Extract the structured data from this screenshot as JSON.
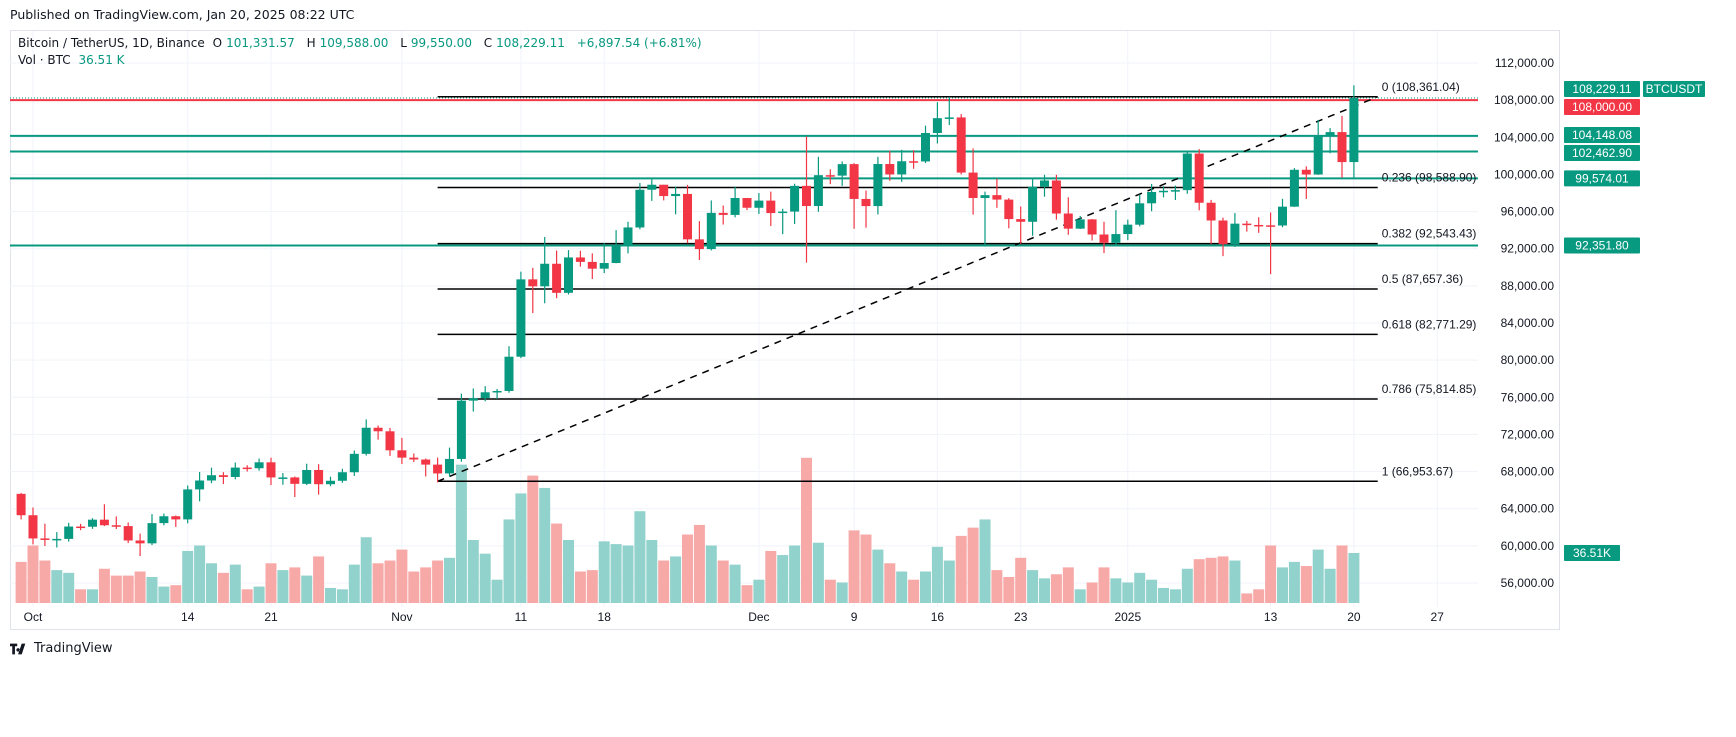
{
  "published": "Published on TradingView.com, Jan 20, 2025 08:22 UTC",
  "legend": {
    "symbol": "Bitcoin / TetherUS, 1D, Binance",
    "open_label": "O",
    "open": "101,331.57",
    "high_label": "H",
    "high": "109,588.00",
    "low_label": "L",
    "low": "99,550.00",
    "close_label": "C",
    "close": "108,229.11",
    "change": "+6,897.54 (+6.81%)",
    "vol_label": "Vol · BTC",
    "vol": "36.51 K"
  },
  "footer": {
    "brand": "TradingView"
  },
  "colors": {
    "up": "#089981",
    "down": "#f23645",
    "vol_up": "#92d2cc",
    "vol_down": "#f7a9a7",
    "fib": "#000000"
  },
  "chart_data": {
    "type": "candlestick",
    "symbol": "BTCUSDT",
    "columns": [
      "date",
      "open",
      "high",
      "low",
      "close",
      "volume_k"
    ],
    "candles": [
      [
        "2024-09-30",
        65600,
        65700,
        62850,
        63300,
        30
      ],
      [
        "2024-10-01",
        63300,
        64130,
        60160,
        60800,
        42
      ],
      [
        "2024-10-02",
        60800,
        62390,
        59990,
        60650,
        31
      ],
      [
        "2024-10-03",
        60650,
        61480,
        59830,
        60750,
        24
      ],
      [
        "2024-10-04",
        60750,
        62480,
        60460,
        62080,
        22
      ],
      [
        "2024-10-05",
        62080,
        62370,
        61690,
        62060,
        10
      ],
      [
        "2024-10-06",
        62060,
        62980,
        61830,
        62820,
        10
      ],
      [
        "2024-10-07",
        62820,
        64480,
        62130,
        62220,
        25
      ],
      [
        "2024-10-08",
        62220,
        63170,
        61820,
        62130,
        20
      ],
      [
        "2024-10-09",
        62130,
        62520,
        60300,
        60580,
        20
      ],
      [
        "2024-10-10",
        60580,
        61320,
        58900,
        60270,
        23
      ],
      [
        "2024-10-11",
        60270,
        63420,
        60080,
        62450,
        19
      ],
      [
        "2024-10-12",
        62450,
        63480,
        62210,
        63190,
        12
      ],
      [
        "2024-10-13",
        63190,
        63270,
        62040,
        62850,
        13
      ],
      [
        "2024-10-14",
        62850,
        66500,
        62430,
        66080,
        38
      ],
      [
        "2024-10-15",
        66080,
        67950,
        64800,
        67040,
        42
      ],
      [
        "2024-10-16",
        67040,
        68420,
        66750,
        67610,
        29
      ],
      [
        "2024-10-17",
        67610,
        67940,
        66660,
        67420,
        22
      ],
      [
        "2024-10-18",
        67420,
        68980,
        67170,
        68430,
        28
      ],
      [
        "2024-10-19",
        68430,
        68690,
        68010,
        68360,
        10
      ],
      [
        "2024-10-20",
        68360,
        69400,
        68100,
        69000,
        12
      ],
      [
        "2024-10-21",
        69000,
        69500,
        66550,
        67370,
        29
      ],
      [
        "2024-10-22",
        67370,
        67840,
        66580,
        67370,
        24
      ],
      [
        "2024-10-23",
        67370,
        67470,
        65260,
        66680,
        26
      ],
      [
        "2024-10-24",
        66680,
        68850,
        66550,
        68170,
        20
      ],
      [
        "2024-10-25",
        68170,
        68800,
        65520,
        66640,
        34
      ],
      [
        "2024-10-26",
        66640,
        67450,
        66430,
        67010,
        11
      ],
      [
        "2024-10-27",
        67010,
        68300,
        66800,
        67930,
        10
      ],
      [
        "2024-10-28",
        67930,
        70270,
        67530,
        69910,
        28
      ],
      [
        "2024-10-29",
        69910,
        73620,
        69720,
        72720,
        48
      ],
      [
        "2024-10-30",
        72720,
        72960,
        71440,
        72340,
        29
      ],
      [
        "2024-10-31",
        72340,
        72700,
        69690,
        70290,
        31
      ],
      [
        "2024-11-01",
        70290,
        71630,
        68820,
        69500,
        39
      ],
      [
        "2024-11-02",
        69500,
        69950,
        69030,
        69300,
        23
      ],
      [
        "2024-11-03",
        69300,
        69400,
        67470,
        68750,
        26
      ],
      [
        "2024-11-04",
        68750,
        69500,
        66840,
        67800,
        31
      ],
      [
        "2024-11-05",
        67800,
        70580,
        67460,
        69360,
        33
      ],
      [
        "2024-11-06",
        69360,
        76400,
        69060,
        75640,
        101
      ],
      [
        "2024-11-07",
        75640,
        76950,
        74460,
        75900,
        46
      ],
      [
        "2024-11-08",
        75900,
        77200,
        75570,
        76540,
        36
      ],
      [
        "2024-11-09",
        76540,
        76900,
        75820,
        76680,
        17
      ],
      [
        "2024-11-10",
        76680,
        81500,
        76490,
        80370,
        61
      ],
      [
        "2024-11-11",
        80370,
        89530,
        80220,
        88700,
        80
      ],
      [
        "2024-11-12",
        88700,
        89940,
        85070,
        87950,
        93
      ],
      [
        "2024-11-13",
        87950,
        93270,
        86120,
        90380,
        84
      ],
      [
        "2024-11-14",
        90380,
        91800,
        86670,
        87250,
        58
      ],
      [
        "2024-11-15",
        87250,
        91850,
        87070,
        91060,
        46
      ],
      [
        "2024-11-16",
        91060,
        91780,
        90070,
        90580,
        23
      ],
      [
        "2024-11-17",
        90580,
        91500,
        88740,
        89850,
        24
      ],
      [
        "2024-11-18",
        89850,
        92600,
        89380,
        90460,
        45
      ],
      [
        "2024-11-19",
        90460,
        94000,
        90430,
        92310,
        43
      ],
      [
        "2024-11-20",
        92310,
        94900,
        91500,
        94290,
        42
      ],
      [
        "2024-11-21",
        94290,
        99080,
        94100,
        98350,
        67
      ],
      [
        "2024-11-22",
        98350,
        99590,
        97150,
        98890,
        46
      ],
      [
        "2024-11-23",
        98890,
        98890,
        97200,
        97670,
        31
      ],
      [
        "2024-11-24",
        97670,
        98700,
        95700,
        97900,
        34
      ],
      [
        "2024-11-25",
        97900,
        98870,
        92600,
        93010,
        50
      ],
      [
        "2024-11-26",
        93010,
        94970,
        90790,
        91960,
        57
      ],
      [
        "2024-11-27",
        91960,
        97200,
        91820,
        95860,
        42
      ],
      [
        "2024-11-28",
        95860,
        96650,
        94600,
        95640,
        31
      ],
      [
        "2024-11-29",
        95640,
        98690,
        95380,
        97460,
        28
      ],
      [
        "2024-11-30",
        97460,
        97460,
        96160,
        96410,
        13
      ],
      [
        "2024-12-01",
        96410,
        98000,
        95740,
        97180,
        17
      ],
      [
        "2024-12-02",
        97180,
        98150,
        94450,
        95840,
        38
      ],
      [
        "2024-12-03",
        95840,
        96300,
        93570,
        96000,
        35
      ],
      [
        "2024-12-04",
        96000,
        99000,
        94660,
        98770,
        42
      ],
      [
        "2024-12-05",
        98770,
        104090,
        90500,
        96600,
        106
      ],
      [
        "2024-12-06",
        96600,
        101900,
        95980,
        99920,
        44
      ],
      [
        "2024-12-07",
        99920,
        100550,
        98950,
        99870,
        17
      ],
      [
        "2024-12-08",
        99870,
        101400,
        98770,
        101110,
        15
      ],
      [
        "2024-12-09",
        101110,
        101220,
        94150,
        97360,
        53
      ],
      [
        "2024-12-10",
        97360,
        98270,
        94260,
        96590,
        50
      ],
      [
        "2024-12-11",
        96590,
        101900,
        95690,
        101120,
        39
      ],
      [
        "2024-12-12",
        101120,
        102540,
        99310,
        100000,
        29
      ],
      [
        "2024-12-13",
        100000,
        102650,
        99200,
        101420,
        23
      ],
      [
        "2024-12-14",
        101420,
        102620,
        100610,
        101400,
        17
      ],
      [
        "2024-12-15",
        101400,
        105250,
        101230,
        104460,
        23
      ],
      [
        "2024-12-16",
        104460,
        107780,
        103330,
        106060,
        41
      ],
      [
        "2024-12-17",
        106060,
        108350,
        105320,
        106140,
        31
      ],
      [
        "2024-12-18",
        106140,
        106500,
        100000,
        100200,
        49
      ],
      [
        "2024-12-19",
        100200,
        102800,
        95670,
        97460,
        55
      ],
      [
        "2024-12-20",
        97460,
        98150,
        92230,
        97770,
        61
      ],
      [
        "2024-12-21",
        97770,
        99540,
        96400,
        97290,
        24
      ],
      [
        "2024-12-22",
        97290,
        97450,
        94200,
        95190,
        19
      ],
      [
        "2024-12-23",
        95190,
        96540,
        92520,
        94900,
        33
      ],
      [
        "2024-12-24",
        94900,
        99500,
        93400,
        98680,
        24
      ],
      [
        "2024-12-25",
        98680,
        99960,
        97600,
        99350,
        18
      ],
      [
        "2024-12-26",
        99350,
        99960,
        95130,
        95790,
        21
      ],
      [
        "2024-12-27",
        95790,
        97540,
        93500,
        94160,
        26
      ],
      [
        "2024-12-28",
        94160,
        95530,
        94120,
        95160,
        10
      ],
      [
        "2024-12-29",
        95160,
        95200,
        92880,
        93530,
        15
      ],
      [
        "2024-12-30",
        93530,
        94900,
        91530,
        92640,
        26
      ],
      [
        "2024-12-31",
        92640,
        96150,
        92350,
        93580,
        18
      ],
      [
        "2025-01-01",
        93580,
        95130,
        92920,
        94590,
        15
      ],
      [
        "2025-01-02",
        94590,
        97840,
        94400,
        96890,
        22
      ],
      [
        "2025-01-03",
        96890,
        98980,
        96030,
        98110,
        17
      ],
      [
        "2025-01-04",
        98110,
        98730,
        97530,
        98240,
        11
      ],
      [
        "2025-01-05",
        98240,
        98800,
        97250,
        98310,
        10
      ],
      [
        "2025-01-06",
        98310,
        102480,
        97920,
        102250,
        25
      ],
      [
        "2025-01-07",
        102250,
        102720,
        96130,
        96950,
        32
      ],
      [
        "2025-01-08",
        96950,
        97260,
        92500,
        95040,
        33
      ],
      [
        "2025-01-09",
        95040,
        95350,
        91200,
        92490,
        34
      ],
      [
        "2025-01-10",
        92490,
        95840,
        92200,
        94700,
        31
      ],
      [
        "2025-01-11",
        94700,
        95000,
        93840,
        94560,
        7
      ],
      [
        "2025-01-12",
        94560,
        95390,
        93710,
        94520,
        10
      ],
      [
        "2025-01-13",
        94520,
        95900,
        89260,
        94500,
        42
      ],
      [
        "2025-01-14",
        94500,
        97370,
        94310,
        96530,
        26
      ],
      [
        "2025-01-15",
        96530,
        100680,
        96500,
        100500,
        30
      ],
      [
        "2025-01-16",
        100500,
        100870,
        97360,
        99990,
        27
      ],
      [
        "2025-01-17",
        99990,
        105870,
        99950,
        104080,
        39
      ],
      [
        "2025-01-18",
        104080,
        104990,
        102280,
        104560,
        25
      ],
      [
        "2025-01-19",
        104560,
        106310,
        99650,
        101330,
        42
      ],
      [
        "2025-01-20",
        101331.57,
        109588,
        99550,
        108229.11,
        36.51
      ]
    ],
    "ylim": [
      54000,
      114000
    ],
    "y_ticks": [
      "112,000.00",
      "108,000.00",
      "104,000.00",
      "100,000.00",
      "96,000.00",
      "92,000.00",
      "88,000.00",
      "84,000.00",
      "80,000.00",
      "76,000.00",
      "72,000.00",
      "68,000.00",
      "64,000.00",
      "60,000.00",
      "56,000.00"
    ],
    "y_tick_values": [
      112000,
      108000,
      104000,
      100000,
      96000,
      92000,
      88000,
      84000,
      80000,
      76000,
      72000,
      68000,
      64000,
      60000,
      56000
    ],
    "x_ticks": [
      {
        "label": "Oct",
        "date": "2024-10-01"
      },
      {
        "label": "14",
        "date": "2024-10-14"
      },
      {
        "label": "21",
        "date": "2024-10-21"
      },
      {
        "label": "Nov",
        "date": "2024-11-01"
      },
      {
        "label": "11",
        "date": "2024-11-11"
      },
      {
        "label": "18",
        "date": "2024-11-18"
      },
      {
        "label": "Dec",
        "date": "2024-12-01"
      },
      {
        "label": "9",
        "date": "2024-12-09"
      },
      {
        "label": "16",
        "date": "2024-12-16"
      },
      {
        "label": "23",
        "date": "2024-12-23"
      },
      {
        "label": "2025",
        "date": "2025-01-01"
      },
      {
        "label": "13",
        "date": "2025-01-13"
      },
      {
        "label": "20",
        "date": "2025-01-20"
      },
      {
        "label": "27",
        "date": "2025-01-27"
      }
    ],
    "horizontal_levels": [
      {
        "price": 108000,
        "label": "108,000.00",
        "color": "#f23645"
      },
      {
        "price": 104148.08,
        "label": "104,148.08",
        "color": "#089981"
      },
      {
        "price": 102462.9,
        "label": "102,462.90",
        "color": "#089981"
      },
      {
        "price": 99574.01,
        "label": "99,574.01",
        "color": "#089981"
      },
      {
        "price": 92351.8,
        "label": "92,351.80",
        "color": "#089981"
      }
    ],
    "last_price": {
      "symbol": "BTCUSDT",
      "price": 108229.11,
      "label": "108,229.11"
    },
    "volume_label": "36.51K",
    "fibonacci": {
      "start": {
        "date": "2024-11-04",
        "price": 66953.67
      },
      "end": {
        "date": "2025-01-22",
        "price": 108361.04
      },
      "levels": [
        {
          "ratio": "0",
          "price": 108361.04,
          "label": "0 (108,361.04)"
        },
        {
          "ratio": "0.236",
          "price": 98588.9,
          "label": "0.236 (98,588.90)"
        },
        {
          "ratio": "0.382",
          "price": 92543.43,
          "label": "0.382 (92,543.43)"
        },
        {
          "ratio": "0.5",
          "price": 87657.36,
          "label": "0.5 (87,657.36)"
        },
        {
          "ratio": "0.618",
          "price": 82771.29,
          "label": "0.618 (82,771.29)"
        },
        {
          "ratio": "0.786",
          "price": 75814.85,
          "label": "0.786 (75,814.85)"
        },
        {
          "ratio": "1",
          "price": 66953.67,
          "label": "1 (66,953.67)"
        }
      ]
    }
  }
}
